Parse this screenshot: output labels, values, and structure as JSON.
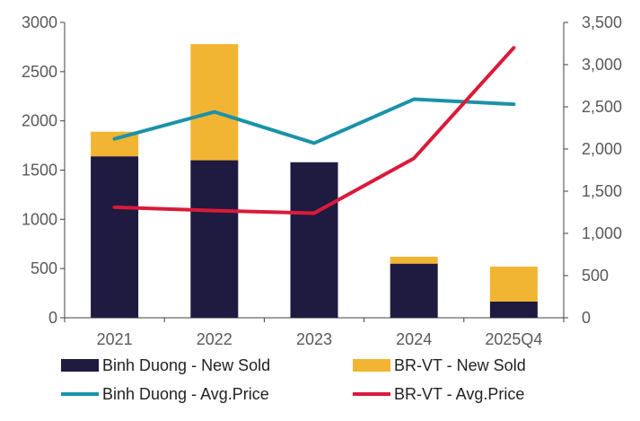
{
  "chart_data": {
    "type": "bar",
    "stacked": true,
    "categories": [
      "2021",
      "2022",
      "2023",
      "2024",
      "2025Q4"
    ],
    "bar_series": [
      {
        "name": "Binh Duong - New Sold",
        "values": [
          1640,
          1600,
          1580,
          550,
          165
        ],
        "color": "#1f1a3f"
      },
      {
        "name": "BR-VT - New Sold",
        "values": [
          250,
          1180,
          0,
          70,
          355
        ],
        "color": "#f2b533"
      }
    ],
    "line_series": [
      {
        "name": "Binh Duong - Avg.Price",
        "values": [
          2120,
          2440,
          2070,
          2590,
          2530
        ],
        "color": "#1a92a8",
        "axis": "right"
      },
      {
        "name": "BR-VT - Avg.Price",
        "values": [
          1310,
          1270,
          1240,
          1890,
          3200
        ],
        "color": "#d91a3a",
        "axis": "right"
      }
    ],
    "ylim_left": [
      0,
      3000
    ],
    "yticks_left": [
      "0",
      "500",
      "1000",
      "1500",
      "2000",
      "2500",
      "3000"
    ],
    "ylim_right": [
      0,
      3500
    ],
    "yticks_right": [
      "0",
      "500",
      "1,000",
      "1,500",
      "2,000",
      "2,500",
      "3,000",
      "3,500"
    ],
    "grid": false,
    "legend_position": "bottom"
  }
}
